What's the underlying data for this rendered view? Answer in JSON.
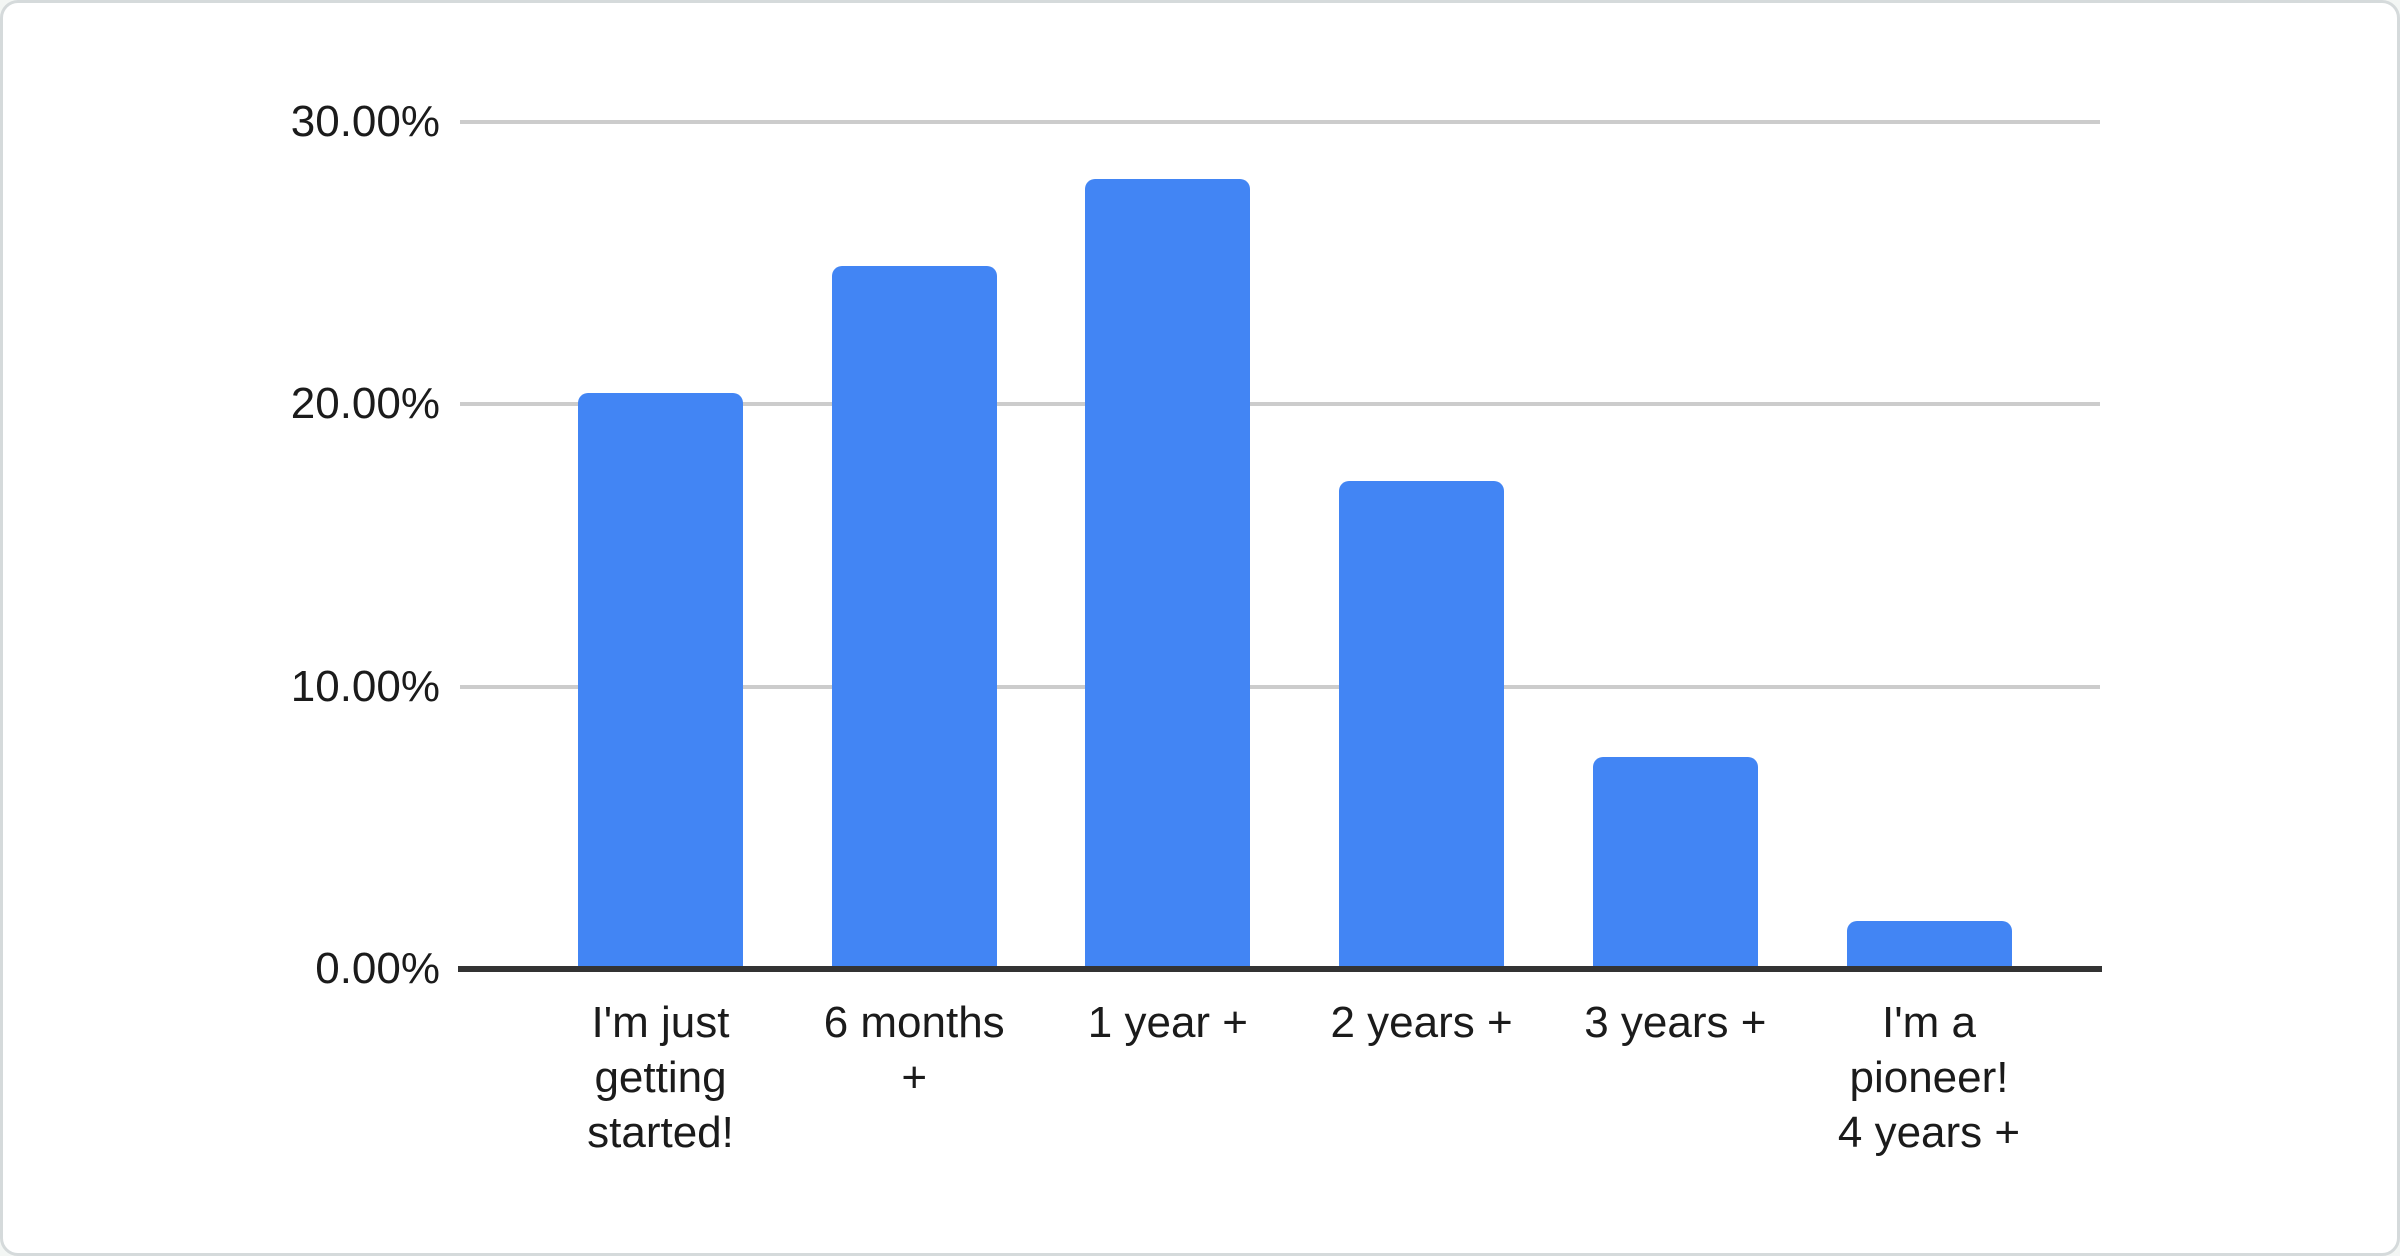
{
  "chart_data": {
    "type": "bar",
    "title": "",
    "xlabel": "",
    "ylabel": "",
    "categories": [
      "I'm just getting started!",
      "6 months +",
      "1 year +",
      "2 years +",
      "3 years +",
      "I'm a pioneer! 4 years +"
    ],
    "category_lines": [
      [
        "I'm just",
        "getting",
        "started!"
      ],
      [
        "6 months",
        "+"
      ],
      [
        "1 year +"
      ],
      [
        "2 years +"
      ],
      [
        "3 years +"
      ],
      [
        "I'm a",
        "pioneer!",
        "4 years +"
      ]
    ],
    "values": [
      20.4,
      24.9,
      28.0,
      17.3,
      7.5,
      1.7
    ],
    "unit": "%",
    "ylim": [
      0,
      30
    ],
    "yticks": [
      {
        "value": 0,
        "label": "0.00%"
      },
      {
        "value": 10,
        "label": "10.00%"
      },
      {
        "value": 20,
        "label": "20.00%"
      },
      {
        "value": 30,
        "label": "30.00%"
      }
    ],
    "grid": true,
    "legend": "none",
    "colors": {
      "bar": "#4285f4",
      "grid": "#cccccc",
      "axis": "#333333",
      "text": "#1b1b1b",
      "card_background": "#ffffff",
      "card_border": "#d5dadb"
    }
  }
}
